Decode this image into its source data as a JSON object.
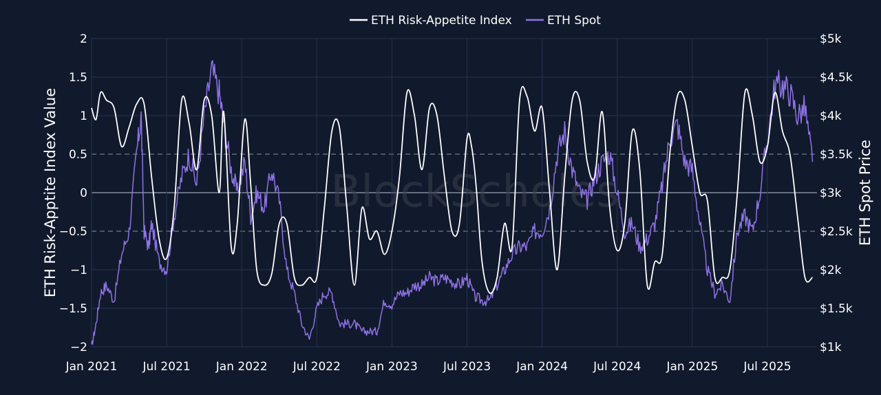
{
  "chart_data": {
    "type": "line",
    "watermark": "BlockScholes",
    "legend": {
      "placement": "top-center",
      "items": [
        "ETH Risk-Appetite Index",
        "ETH Spot"
      ]
    },
    "colors": {
      "background": "#111a2c",
      "index_line": "#ffffff",
      "spot_line": "#8f72e6",
      "grid": "#26314f",
      "zero_line": "#9aa3b5",
      "dashed": "#8a93a6"
    },
    "x_axis": {
      "start": "2021-01-01",
      "end": "2025-11-01",
      "ticks": [
        {
          "t": 2021.0,
          "label": "Jan 2021"
        },
        {
          "t": 2021.5,
          "label": "Jul 2021"
        },
        {
          "t": 2022.0,
          "label": "Jan 2022"
        },
        {
          "t": 2022.5,
          "label": "Jul 2022"
        },
        {
          "t": 2023.0,
          "label": "Jan 2023"
        },
        {
          "t": 2023.5,
          "label": "Jul 2023"
        },
        {
          "t": 2024.0,
          "label": "Jan 2024"
        },
        {
          "t": 2024.5,
          "label": "Jul 2024"
        },
        {
          "t": 2025.0,
          "label": "Jan 2025"
        },
        {
          "t": 2025.5,
          "label": "Jul 2025"
        }
      ]
    },
    "y_left": {
      "title": "ETH Risk-Apptite Index Value",
      "ylim": [
        -2,
        2
      ],
      "ticks": [
        {
          "v": 2,
          "label": "2"
        },
        {
          "v": 1.5,
          "label": "1.5"
        },
        {
          "v": 1,
          "label": "1"
        },
        {
          "v": 0.5,
          "label": "0.5"
        },
        {
          "v": 0,
          "label": "0"
        },
        {
          "v": -0.5,
          "label": "−0.5"
        },
        {
          "v": -1,
          "label": "−1"
        },
        {
          "v": -1.5,
          "label": "−1.5"
        },
        {
          "v": -2,
          "label": "−2"
        }
      ],
      "dashed_lines": [
        0.5,
        -0.5
      ],
      "solid_lines": [
        0
      ]
    },
    "y_right": {
      "title": "ETH Spot Price",
      "ylim": [
        1000,
        5000
      ],
      "ticks": [
        {
          "v": 5000,
          "label": "$5k"
        },
        {
          "v": 4500,
          "label": "$4.5k"
        },
        {
          "v": 4000,
          "label": "$4k"
        },
        {
          "v": 3500,
          "label": "$3.5k"
        },
        {
          "v": 3000,
          "label": "$3k"
        },
        {
          "v": 2500,
          "label": "$2.5k"
        },
        {
          "v": 2000,
          "label": "$2k"
        },
        {
          "v": 1500,
          "label": "$1.5k"
        },
        {
          "v": 1000,
          "label": "$1k"
        }
      ]
    },
    "series": [
      {
        "name": "ETH Risk-Appetite Index",
        "axis": "left",
        "x": [
          2021.0,
          2021.03,
          2021.06,
          2021.1,
          2021.15,
          2021.2,
          2021.25,
          2021.3,
          2021.35,
          2021.4,
          2021.45,
          2021.5,
          2021.55,
          2021.6,
          2021.65,
          2021.7,
          2021.75,
          2021.8,
          2021.85,
          2021.88,
          2021.93,
          2021.97,
          2022.02,
          2022.06,
          2022.1,
          2022.15,
          2022.2,
          2022.25,
          2022.3,
          2022.35,
          2022.4,
          2022.45,
          2022.5,
          2022.55,
          2022.6,
          2022.65,
          2022.7,
          2022.75,
          2022.8,
          2022.85,
          2022.9,
          2022.95,
          2023.0,
          2023.05,
          2023.1,
          2023.15,
          2023.2,
          2023.25,
          2023.3,
          2023.35,
          2023.4,
          2023.45,
          2023.5,
          2023.53,
          2023.56,
          2023.6,
          2023.65,
          2023.7,
          2023.75,
          2023.8,
          2023.85,
          2023.9,
          2023.95,
          2024.0,
          2024.05,
          2024.1,
          2024.15,
          2024.2,
          2024.25,
          2024.3,
          2024.35,
          2024.4,
          2024.45,
          2024.5,
          2024.55,
          2024.6,
          2024.65,
          2024.7,
          2024.75,
          2024.8,
          2024.85,
          2024.9,
          2024.95,
          2025.0,
          2025.05,
          2025.1,
          2025.15,
          2025.2,
          2025.25,
          2025.3,
          2025.35,
          2025.4,
          2025.45,
          2025.5,
          2025.55,
          2025.6,
          2025.65,
          2025.7,
          2025.75,
          2025.8
        ],
        "values": [
          1.1,
          0.95,
          1.3,
          1.2,
          1.1,
          0.6,
          0.85,
          1.15,
          1.15,
          0.2,
          -0.6,
          -0.85,
          -0.2,
          1.2,
          0.9,
          0.3,
          1.2,
          1.0,
          0.0,
          1.05,
          -0.7,
          -0.4,
          0.95,
          0.1,
          -1.0,
          -1.2,
          -1.05,
          -0.4,
          -0.4,
          -1.1,
          -1.2,
          -1.1,
          -1.1,
          -0.2,
          0.8,
          0.85,
          -0.2,
          -1.2,
          -0.2,
          -0.6,
          -0.5,
          -0.8,
          -0.5,
          0.2,
          1.3,
          1.0,
          0.3,
          1.1,
          1.0,
          0.2,
          -0.5,
          -0.4,
          0.7,
          0.6,
          0.1,
          -0.9,
          -1.3,
          -1.1,
          -0.4,
          -0.7,
          1.2,
          1.25,
          0.8,
          1.1,
          0.0,
          -1.0,
          0.2,
          1.2,
          1.2,
          0.4,
          0.2,
          1.05,
          -0.2,
          -0.75,
          -0.4,
          0.8,
          0.3,
          -1.2,
          -0.9,
          -0.8,
          0.5,
          1.25,
          1.2,
          0.6,
          0.0,
          -0.1,
          -1.1,
          -1.1,
          -1.0,
          0.0,
          1.3,
          1.0,
          0.4,
          0.6,
          1.3,
          0.8,
          0.5,
          -0.3,
          -1.1,
          -1.1
        ]
      },
      {
        "name": "ETH Spot",
        "axis": "right",
        "x": [
          2021.0,
          2021.03,
          2021.06,
          2021.1,
          2021.15,
          2021.2,
          2021.25,
          2021.3,
          2021.33,
          2021.35,
          2021.38,
          2021.4,
          2021.45,
          2021.5,
          2021.55,
          2021.6,
          2021.65,
          2021.7,
          2021.75,
          2021.8,
          2021.85,
          2021.88,
          2021.93,
          2021.97,
          2022.02,
          2022.06,
          2022.1,
          2022.15,
          2022.2,
          2022.25,
          2022.3,
          2022.35,
          2022.4,
          2022.45,
          2022.5,
          2022.55,
          2022.6,
          2022.65,
          2022.7,
          2022.75,
          2022.8,
          2022.85,
          2022.9,
          2022.95,
          2023.0,
          2023.05,
          2023.1,
          2023.15,
          2023.2,
          2023.25,
          2023.3,
          2023.35,
          2023.4,
          2023.45,
          2023.5,
          2023.55,
          2023.6,
          2023.65,
          2023.7,
          2023.75,
          2023.8,
          2023.85,
          2023.9,
          2023.95,
          2024.0,
          2024.05,
          2024.1,
          2024.15,
          2024.2,
          2024.25,
          2024.3,
          2024.35,
          2024.4,
          2024.45,
          2024.5,
          2024.55,
          2024.6,
          2024.65,
          2024.7,
          2024.75,
          2024.8,
          2024.85,
          2024.9,
          2024.95,
          2025.0,
          2025.05,
          2025.1,
          2025.15,
          2025.2,
          2025.25,
          2025.3,
          2025.35,
          2025.4,
          2025.45,
          2025.5,
          2025.55,
          2025.6,
          2025.65,
          2025.7,
          2025.75,
          2025.8
        ],
        "values": [
          1000,
          1300,
          1700,
          1800,
          1600,
          2200,
          2500,
          3500,
          4000,
          2500,
          2300,
          2600,
          2100,
          2000,
          2700,
          3200,
          3500,
          3100,
          4000,
          4600,
          4300,
          3900,
          3300,
          3000,
          3400,
          2700,
          3000,
          2800,
          3300,
          2900,
          2000,
          1700,
          1300,
          1100,
          1500,
          1700,
          1700,
          1300,
          1300,
          1300,
          1200,
          1200,
          1200,
          1600,
          1550,
          1700,
          1700,
          1800,
          1800,
          1900,
          1850,
          1900,
          1850,
          1800,
          1900,
          1650,
          1600,
          1600,
          1800,
          2000,
          2200,
          2300,
          2300,
          2500,
          2500,
          2800,
          3500,
          3800,
          3300,
          3000,
          2900,
          3200,
          3400,
          3500,
          3000,
          2500,
          2600,
          2300,
          2400,
          2600,
          3100,
          3700,
          3900,
          3400,
          3300,
          2600,
          2000,
          1700,
          1800,
          1600,
          2500,
          2700,
          2500,
          3000,
          3700,
          4400,
          4400,
          4300,
          4000,
          4100,
          3400
        ]
      }
    ]
  }
}
